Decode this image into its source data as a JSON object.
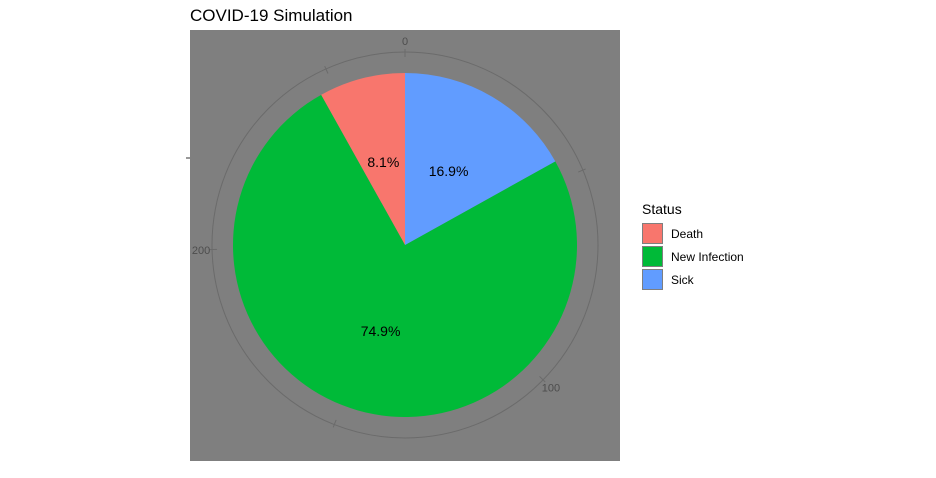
{
  "chart_data": {
    "type": "pie",
    "title": "COVID-19 Simulation",
    "legend_title": "Status",
    "legend_position": "right",
    "categories": [
      "Death",
      "New Infection",
      "Sick"
    ],
    "values": [
      8.1,
      74.9,
      16.9
    ],
    "labels": [
      "8.1%",
      "74.9%",
      "16.9%"
    ],
    "colors": [
      "#F8766D",
      "#00BA38",
      "#619CFF"
    ],
    "radial_axis_ticks": [
      0,
      100,
      200
    ],
    "radial_axis_max": 268,
    "panel_background": "#7f7f7f",
    "grid": true
  }
}
